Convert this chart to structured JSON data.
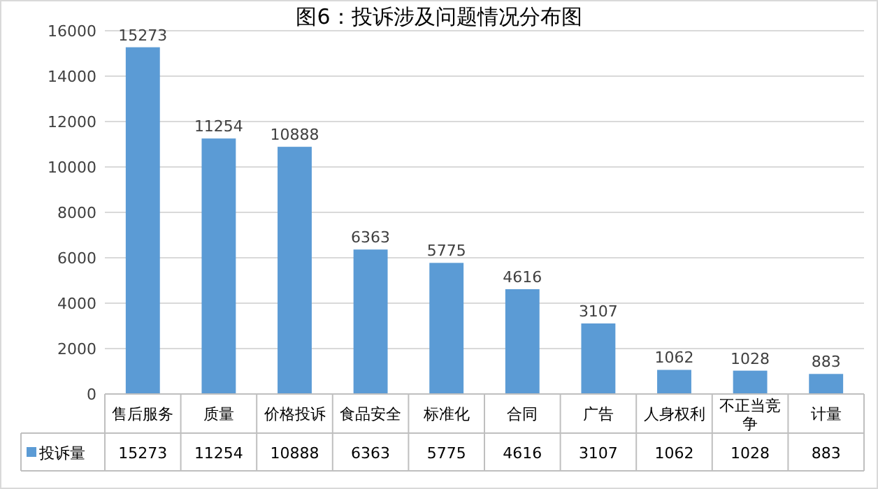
{
  "chart_data": {
    "type": "bar",
    "title": "图6：投诉涉及问题情况分布图",
    "categories": [
      "售后服务",
      "质量",
      "价格投诉",
      "食品安全",
      "标准化",
      "合同",
      "广告",
      "人身权利",
      "不正当竞争",
      "计量"
    ],
    "series": [
      {
        "name": "投诉量",
        "color": "#5b9bd5",
        "values": [
          15273,
          11254,
          10888,
          6363,
          5775,
          4616,
          3107,
          1062,
          1028,
          883
        ],
        "value_labels": [
          "15273",
          "11254",
          "10888",
          "6363",
          "5775",
          "4616",
          "3107",
          "1062",
          "1028",
          "883"
        ]
      }
    ],
    "ylim": [
      0,
      16000
    ],
    "yticks": [
      0,
      2000,
      4000,
      6000,
      8000,
      10000,
      12000,
      14000,
      16000
    ],
    "grid": "y",
    "data_labels": true,
    "legend": "bottom"
  }
}
